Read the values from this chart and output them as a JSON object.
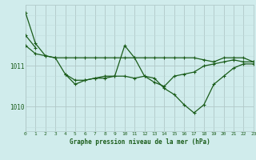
{
  "bg_color": "#d0ecec",
  "grid_color_major": "#b0c8c8",
  "grid_color_minor": "#c0dcdc",
  "line_color": "#1a5c1a",
  "marker_color": "#1a5c1a",
  "title": "Graphe pression niveau de la mer (hPa)",
  "title_color": "#1a5c1a",
  "xlim": [
    0,
    23
  ],
  "ylim": [
    1009.4,
    1012.5
  ],
  "yticks": [
    1010,
    1011
  ],
  "xticks": [
    0,
    1,
    2,
    3,
    4,
    5,
    6,
    7,
    8,
    9,
    10,
    11,
    12,
    13,
    14,
    15,
    16,
    17,
    18,
    19,
    20,
    21,
    22,
    23
  ],
  "series": [
    [
      1012.3,
      1011.55,
      1011.25,
      1011.2,
      1011.2,
      1011.2,
      1011.2,
      1011.2,
      1011.2,
      1011.2,
      1011.2,
      1011.2,
      1011.2,
      1011.2,
      1011.2,
      1011.2,
      1011.2,
      1011.2,
      1011.15,
      1011.1,
      1011.2,
      1011.2,
      1011.2,
      1011.1
    ],
    [
      1011.5,
      1011.3,
      1011.25,
      1011.2,
      1010.8,
      1010.65,
      1010.65,
      1010.7,
      1010.75,
      1010.75,
      1010.75,
      1010.7,
      1010.75,
      1010.6,
      1010.5,
      1010.75,
      1010.8,
      1010.85,
      1011.0,
      1011.05,
      1011.1,
      1011.15,
      1011.1,
      1011.1
    ],
    [
      1011.75,
      1011.45,
      null,
      null,
      1010.8,
      1010.55,
      1010.65,
      1010.7,
      1010.7,
      1010.75,
      1011.5,
      1011.2,
      1010.75,
      1010.7,
      1010.45,
      1010.3,
      1010.05,
      1009.85,
      1010.05,
      1010.55,
      1010.75,
      1010.95,
      1011.05,
      1011.05
    ]
  ]
}
